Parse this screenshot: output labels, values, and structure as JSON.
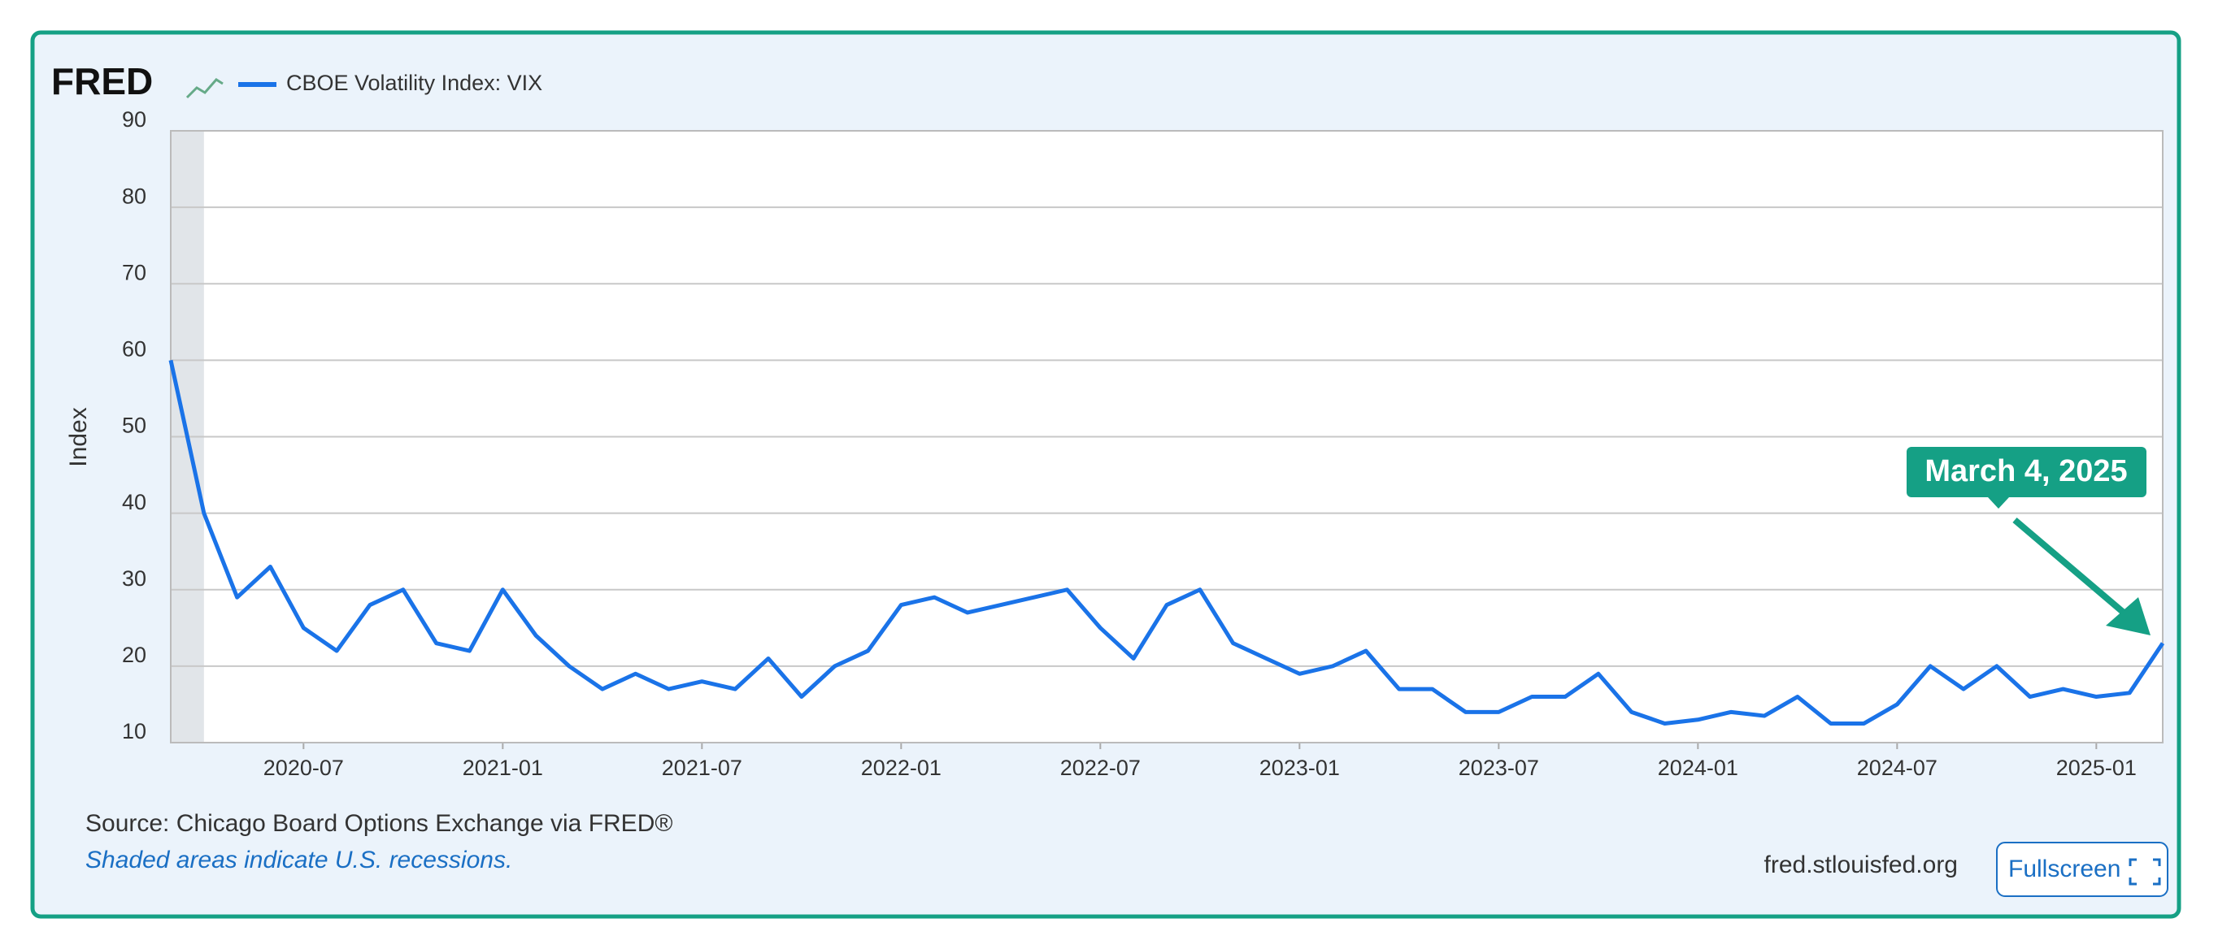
{
  "chart_data": {
    "type": "line",
    "logo": "FRED",
    "ylabel": "Index",
    "x": [
      "2020-03",
      "2020-04",
      "2020-05",
      "2020-06",
      "2020-07",
      "2020-08",
      "2020-09",
      "2020-10",
      "2020-11",
      "2020-12",
      "2021-01",
      "2021-02",
      "2021-03",
      "2021-04",
      "2021-05",
      "2021-06",
      "2021-07",
      "2021-08",
      "2021-09",
      "2021-10",
      "2021-11",
      "2021-12",
      "2022-01",
      "2022-02",
      "2022-03",
      "2022-04",
      "2022-05",
      "2022-06",
      "2022-07",
      "2022-08",
      "2022-09",
      "2022-10",
      "2022-11",
      "2022-12",
      "2023-01",
      "2023-02",
      "2023-03",
      "2023-04",
      "2023-05",
      "2023-06",
      "2023-07",
      "2023-08",
      "2023-09",
      "2023-10",
      "2023-11",
      "2023-12",
      "2024-01",
      "2024-02",
      "2024-03",
      "2024-04",
      "2024-05",
      "2024-06",
      "2024-07",
      "2024-08",
      "2024-09",
      "2024-10",
      "2024-11",
      "2024-12",
      "2025-01",
      "2025-02",
      "2025-03"
    ],
    "series": [
      {
        "name": "CBOE Volatility Index: VIX",
        "color": "#1a73e8",
        "values": [
          60,
          40,
          29,
          33,
          25,
          22,
          28,
          30,
          23,
          22,
          30,
          24,
          20,
          17,
          19,
          17,
          18,
          17,
          21,
          16,
          20,
          22,
          28,
          29,
          27,
          28,
          29,
          30,
          25,
          21,
          28,
          30,
          23,
          21,
          19,
          20,
          22,
          17,
          17,
          14,
          14,
          16,
          16,
          19,
          14,
          12.5,
          13,
          14,
          13.5,
          16,
          12.5,
          12.5,
          15,
          20,
          17,
          20,
          16,
          17,
          16,
          16.5,
          23
        ]
      }
    ],
    "xlim": [
      "2020-03",
      "2025-03"
    ],
    "xticks": [
      "2020-07",
      "2021-01",
      "2021-07",
      "2022-01",
      "2022-07",
      "2023-01",
      "2023-07",
      "2024-01",
      "2024-07",
      "2025-01"
    ],
    "ylim": [
      10,
      90
    ],
    "yticks": [
      10,
      20,
      30,
      40,
      50,
      60,
      70,
      80,
      90
    ],
    "grid": true,
    "recessions": [
      [
        "2020-02",
        "2020-04"
      ]
    ],
    "annotation": "March 4, 2025",
    "source": "Source: Chicago Board Options Exchange via FRED®",
    "note": "Shaded areas indicate U.S. recessions.",
    "site": "fred.stlouisfed.org",
    "button": "Fullscreen"
  }
}
